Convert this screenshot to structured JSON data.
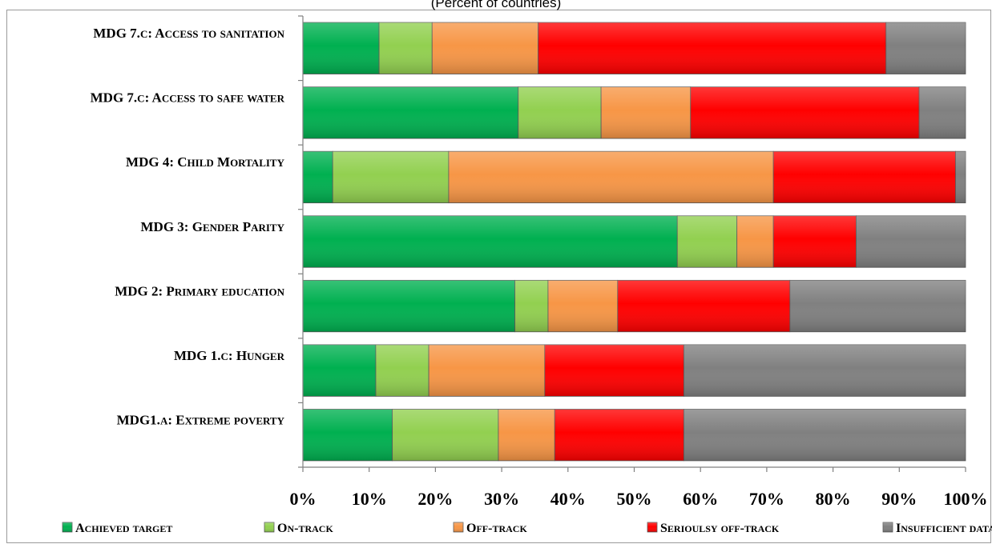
{
  "chart_data": {
    "type": "bar",
    "orientation": "horizontal",
    "stacked": true,
    "subtitle": "(Percent of countries)",
    "categories": [
      "MDG 7.c: Access to sanitation",
      "MDG 7.c: Access to safe water",
      "MDG 4: Child Mortality",
      "MDG 3: Gender Parity",
      "MDG 2:  Primary education",
      "MDG 1.c: Hunger",
      "MDG1.a: Extreme poverty"
    ],
    "series": [
      {
        "name": "Achieved target",
        "color": "#00b050",
        "values": [
          11.5,
          32.5,
          4.5,
          56.5,
          32,
          11,
          13.5
        ]
      },
      {
        "name": "On-track",
        "color": "#92d050",
        "values": [
          8,
          12.5,
          17.5,
          9,
          5,
          8,
          16
        ]
      },
      {
        "name": "Off-track",
        "color": "#f79646",
        "values": [
          16,
          13.5,
          49,
          5.5,
          10.5,
          17.5,
          8.5
        ]
      },
      {
        "name": "Serioulsy off-track",
        "color": "#ff0000",
        "values": [
          52.5,
          34.5,
          27.5,
          12.5,
          26,
          21,
          19.5
        ]
      },
      {
        "name": "Insufficient data",
        "color": "#808080",
        "values": [
          12,
          7,
          1.5,
          16.5,
          26.5,
          42.5,
          42.5
        ]
      }
    ],
    "x_ticks": [
      "0%",
      "10%",
      "20%",
      "30%",
      "40%",
      "50%",
      "60%",
      "70%",
      "80%",
      "90%",
      "100%"
    ],
    "xlim": [
      0,
      100
    ],
    "grid": false,
    "legend_position": "bottom"
  }
}
